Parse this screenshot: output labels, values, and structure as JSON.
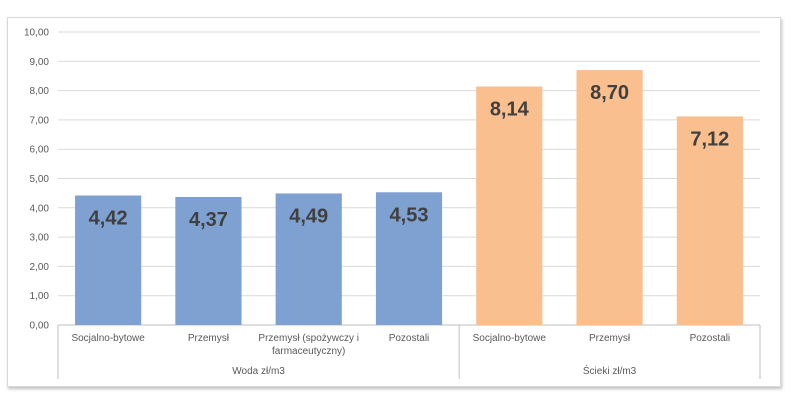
{
  "chart_data": {
    "type": "bar",
    "ylim": [
      0,
      10
    ],
    "yticks": [
      "0,00",
      "1,00",
      "2,00",
      "3,00",
      "4,00",
      "5,00",
      "6,00",
      "7,00",
      "8,00",
      "9,00",
      "10,00"
    ],
    "grid": true,
    "groups": [
      {
        "name": "Woda zł/m3",
        "color": "#7ea1d1",
        "categories": [
          [
            "Socjalno-bytowe"
          ],
          [
            "Przemysł"
          ],
          [
            "Przemysł (spożywczy i",
            "farmaceutyczny)"
          ],
          [
            "Pozostali"
          ]
        ],
        "values": [
          4.42,
          4.37,
          4.49,
          4.53
        ],
        "labels": [
          "4,42",
          "4,37",
          "4,49",
          "4,53"
        ]
      },
      {
        "name": "Ścieki zł/m3",
        "color": "#f9bf8f",
        "categories": [
          [
            "Socjalno-bytowe"
          ],
          [
            "Przemysł"
          ],
          [
            "Pozostali"
          ]
        ],
        "values": [
          8.14,
          8.7,
          7.12
        ],
        "labels": [
          "8,14",
          "8,70",
          "7,12"
        ]
      }
    ]
  }
}
